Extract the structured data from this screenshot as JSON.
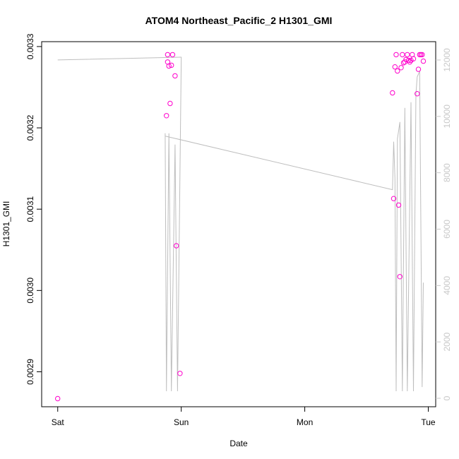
{
  "chart_data": {
    "type": "scatter",
    "title": "ATOM4 Northeast_Pacific_2 H1301_GMI",
    "xlabel": "Date",
    "ylabel": "H1301_GMI",
    "x_ticks": [
      {
        "day": 0,
        "label": "Sat"
      },
      {
        "day": 1,
        "label": "Sun"
      },
      {
        "day": 2,
        "label": "Mon"
      },
      {
        "day": 3,
        "label": "Tue"
      }
    ],
    "xlim": [
      -0.13,
      3.06
    ],
    "ylim": [
      0.002857,
      0.003306
    ],
    "y_ticks": [
      0.0029,
      0.003,
      0.0031,
      0.0032,
      0.0033
    ],
    "y_tick_labels": [
      "0.0029",
      "0.0030",
      "0.0031",
      "0.0032",
      "0.0033"
    ],
    "y2lim": [
      -300,
      12650
    ],
    "y2_ticks": [
      0,
      2000,
      4000,
      6000,
      8000,
      10000,
      12000
    ],
    "y2_tick_labels": [
      "0",
      "2000",
      "4000",
      "6000",
      "8000",
      "10000",
      "12000"
    ],
    "grid": false,
    "points_color": "#ff00cc",
    "line_color": "#bebebe",
    "series": [
      {
        "axis": "left",
        "marker": "open-circle",
        "points": [
          {
            "x": 0.0,
            "y": 0.002867
          },
          {
            "x": 0.88,
            "y": 0.003215
          },
          {
            "x": 0.89,
            "y": 0.003281
          },
          {
            "x": 0.89,
            "y": 0.00329
          },
          {
            "x": 0.9,
            "y": 0.003276
          },
          {
            "x": 0.91,
            "y": 0.00323
          },
          {
            "x": 0.92,
            "y": 0.003277
          },
          {
            "x": 0.93,
            "y": 0.00329
          },
          {
            "x": 0.95,
            "y": 0.003264
          },
          {
            "x": 0.96,
            "y": 0.003055
          },
          {
            "x": 0.99,
            "y": 0.002898
          },
          {
            "x": 2.71,
            "y": 0.003243
          },
          {
            "x": 2.72,
            "y": 0.003113
          },
          {
            "x": 2.73,
            "y": 0.003275
          },
          {
            "x": 2.74,
            "y": 0.00329
          },
          {
            "x": 2.75,
            "y": 0.00327
          },
          {
            "x": 2.76,
            "y": 0.003105
          },
          {
            "x": 2.77,
            "y": 0.003017
          },
          {
            "x": 2.78,
            "y": 0.003274
          },
          {
            "x": 2.79,
            "y": 0.00329
          },
          {
            "x": 2.8,
            "y": 0.00328
          },
          {
            "x": 2.81,
            "y": 0.003281
          },
          {
            "x": 2.82,
            "y": 0.003284
          },
          {
            "x": 2.83,
            "y": 0.00329
          },
          {
            "x": 2.84,
            "y": 0.003283
          },
          {
            "x": 2.85,
            "y": 0.003281
          },
          {
            "x": 2.86,
            "y": 0.003283
          },
          {
            "x": 2.87,
            "y": 0.00329
          },
          {
            "x": 2.88,
            "y": 0.003285
          },
          {
            "x": 2.91,
            "y": 0.003242
          },
          {
            "x": 2.92,
            "y": 0.003272
          },
          {
            "x": 2.93,
            "y": 0.00329
          },
          {
            "x": 2.94,
            "y": 0.00329
          },
          {
            "x": 2.95,
            "y": 0.00329
          },
          {
            "x": 2.96,
            "y": 0.003282
          }
        ]
      },
      {
        "axis": "right",
        "marker": "line",
        "points": [
          {
            "x": 0.0,
            "y": 12000
          },
          {
            "x": 1.0,
            "y": 12100
          },
          {
            "x": 0.97,
            "y": 250
          },
          {
            "x": 0.95,
            "y": 9000
          },
          {
            "x": 0.92,
            "y": 250
          },
          {
            "x": 0.9,
            "y": 9400
          },
          {
            "x": 0.88,
            "y": 250
          },
          {
            "x": 0.87,
            "y": 9400
          },
          {
            "x": 0.87,
            "y": 9300
          },
          {
            "x": 2.71,
            "y": 7400
          },
          {
            "x": 2.72,
            "y": 9100
          },
          {
            "x": 2.73,
            "y": 7800
          },
          {
            "x": 2.74,
            "y": 250
          },
          {
            "x": 2.75,
            "y": 9200
          },
          {
            "x": 2.77,
            "y": 9800
          },
          {
            "x": 2.79,
            "y": 250
          },
          {
            "x": 2.81,
            "y": 10300
          },
          {
            "x": 2.83,
            "y": 250
          },
          {
            "x": 2.86,
            "y": 10500
          },
          {
            "x": 2.88,
            "y": 250
          },
          {
            "x": 2.9,
            "y": 10800
          },
          {
            "x": 2.91,
            "y": 11400
          },
          {
            "x": 2.93,
            "y": 11600
          },
          {
            "x": 2.95,
            "y": 400
          },
          {
            "x": 2.96,
            "y": 4100
          }
        ]
      }
    ]
  }
}
